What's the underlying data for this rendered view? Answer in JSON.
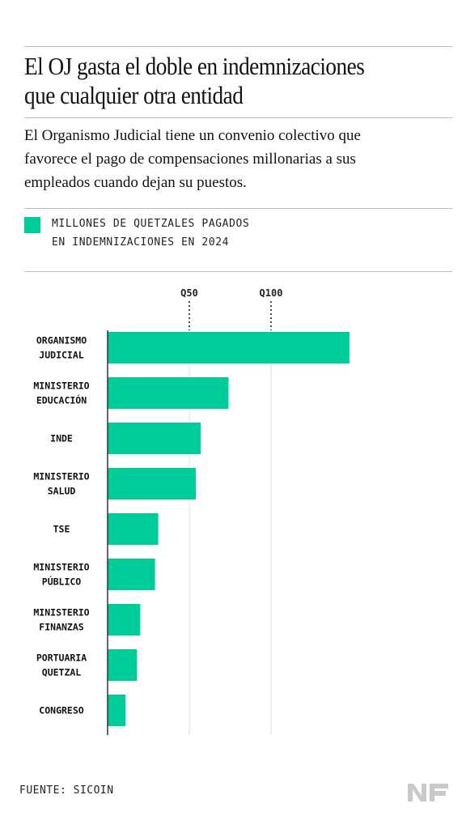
{
  "header": {
    "title_line1": "El OJ gasta el doble en indemnizaciones",
    "title_line2": "que cualquier otra entidad",
    "subtitle_line1": "El Organismo Judicial tiene un convenio colectivo que",
    "subtitle_line2": "favorece el pago de compensaciones millonarias a sus",
    "subtitle_line3": "empleados cuando dejan su puestos."
  },
  "legend": {
    "line1": "MILLONES DE QUETZALES PAGADOS",
    "line2": "EN INDEMNIZACIONES EN 2024"
  },
  "footer": {
    "source": "FUENTE: SICOIN",
    "logo_icon": "nf-logo-icon"
  },
  "colors": {
    "bar": "#00cc99",
    "grid": "#dddddd",
    "axis": "#333333"
  },
  "chart_data": {
    "type": "bar",
    "orientation": "horizontal",
    "categories": [
      [
        "ORGANISMO",
        "JUDICIAL"
      ],
      [
        "MINISTERIO",
        "EDUCACIÓN"
      ],
      [
        "INDE"
      ],
      [
        "MINISTERIO",
        "SALUD"
      ],
      [
        "TSE"
      ],
      [
        "MINISTERIO",
        "PÚBLICO"
      ],
      [
        "MINISTERIO",
        "FINANZAS"
      ],
      [
        "PORTUARIA",
        "QUETZAL"
      ],
      [
        "CONGRESO"
      ]
    ],
    "values": [
      148,
      74,
      57,
      54,
      31,
      29,
      20,
      18,
      11
    ],
    "ticks": [
      {
        "value": 50,
        "label": "Q50"
      },
      {
        "value": 100,
        "label": "Q100"
      }
    ],
    "xlim": [
      0,
      150
    ],
    "grid": true
  }
}
